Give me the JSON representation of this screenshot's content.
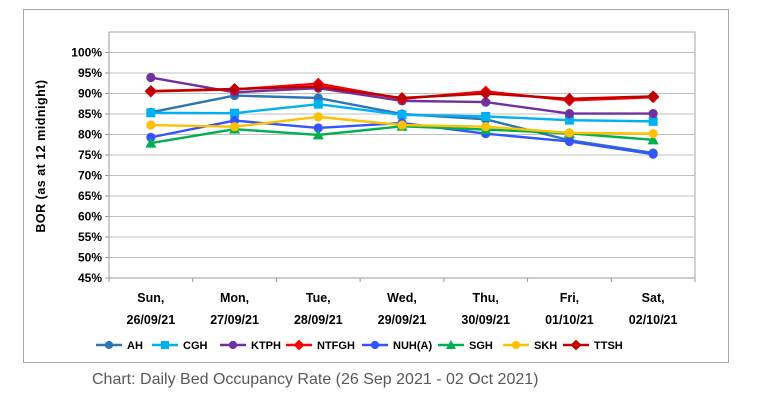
{
  "caption": "Chart: Daily Bed Occupancy Rate (26 Sep 2021 - 02 Oct 2021)",
  "chart_data": {
    "type": "line",
    "title": "",
    "xlabel": "",
    "ylabel": "BOR (as at 12 midnight)",
    "ylim": [
      45,
      105
    ],
    "ytick_step": 5,
    "ytick_labels": [
      "45%",
      "50%",
      "55%",
      "60%",
      "65%",
      "70%",
      "75%",
      "80%",
      "85%",
      "90%",
      "95%",
      "100%"
    ],
    "grid": "horizontal",
    "legend_position": "bottom",
    "categories": [
      {
        "day": "Sun,",
        "date": "26/09/21"
      },
      {
        "day": "Mon,",
        "date": "27/09/21"
      },
      {
        "day": "Tue,",
        "date": "28/09/21"
      },
      {
        "day": "Wed,",
        "date": "29/09/21"
      },
      {
        "day": "Thu,",
        "date": "30/09/21"
      },
      {
        "day": "Fri,",
        "date": "01/10/21"
      },
      {
        "day": "Sat,",
        "date": "02/10/21"
      }
    ],
    "series": [
      {
        "name": "AH",
        "color": "#2E75B6",
        "marker": "circle",
        "values": [
          85.4,
          89.5,
          88.9,
          85.0,
          83.7,
          78.6,
          75.5
        ]
      },
      {
        "name": "CGH",
        "color": "#00B0F0",
        "marker": "square",
        "values": [
          85.3,
          85.2,
          87.4,
          84.8,
          84.4,
          83.5,
          83.2
        ]
      },
      {
        "name": "KTPH",
        "color": "#7030A0",
        "marker": "circle",
        "values": [
          93.9,
          90.3,
          91.3,
          88.2,
          87.9,
          85.1,
          85.1
        ]
      },
      {
        "name": "NTFGH",
        "color": "#FF0000",
        "marker": "diamond",
        "values": [
          90.5,
          91.0,
          92.4,
          88.7,
          90.5,
          88.3,
          89.1
        ]
      },
      {
        "name": "NUH(A)",
        "color": "#3355FF",
        "marker": "circle",
        "values": [
          79.3,
          83.4,
          81.6,
          82.8,
          80.2,
          78.3,
          75.2
        ]
      },
      {
        "name": "SGH",
        "color": "#00B050",
        "marker": "triangle",
        "values": [
          77.9,
          81.3,
          79.9,
          82.0,
          81.2,
          80.3,
          78.7
        ]
      },
      {
        "name": "SKH",
        "color": "#FFC000",
        "marker": "circle",
        "values": [
          82.3,
          81.9,
          84.3,
          82.3,
          81.9,
          80.4,
          80.2
        ]
      },
      {
        "name": "TTSH",
        "color": "#C00000",
        "marker": "diamond",
        "values": [
          90.6,
          91.1,
          91.7,
          88.9,
          90.0,
          88.7,
          89.3
        ]
      }
    ],
    "colors": {
      "gridline": "#c0c0c0",
      "axis": "#9a9a9a",
      "frame_border": "#a6a6a6",
      "tick_text": "#000000",
      "caption_text": "#595959"
    }
  }
}
